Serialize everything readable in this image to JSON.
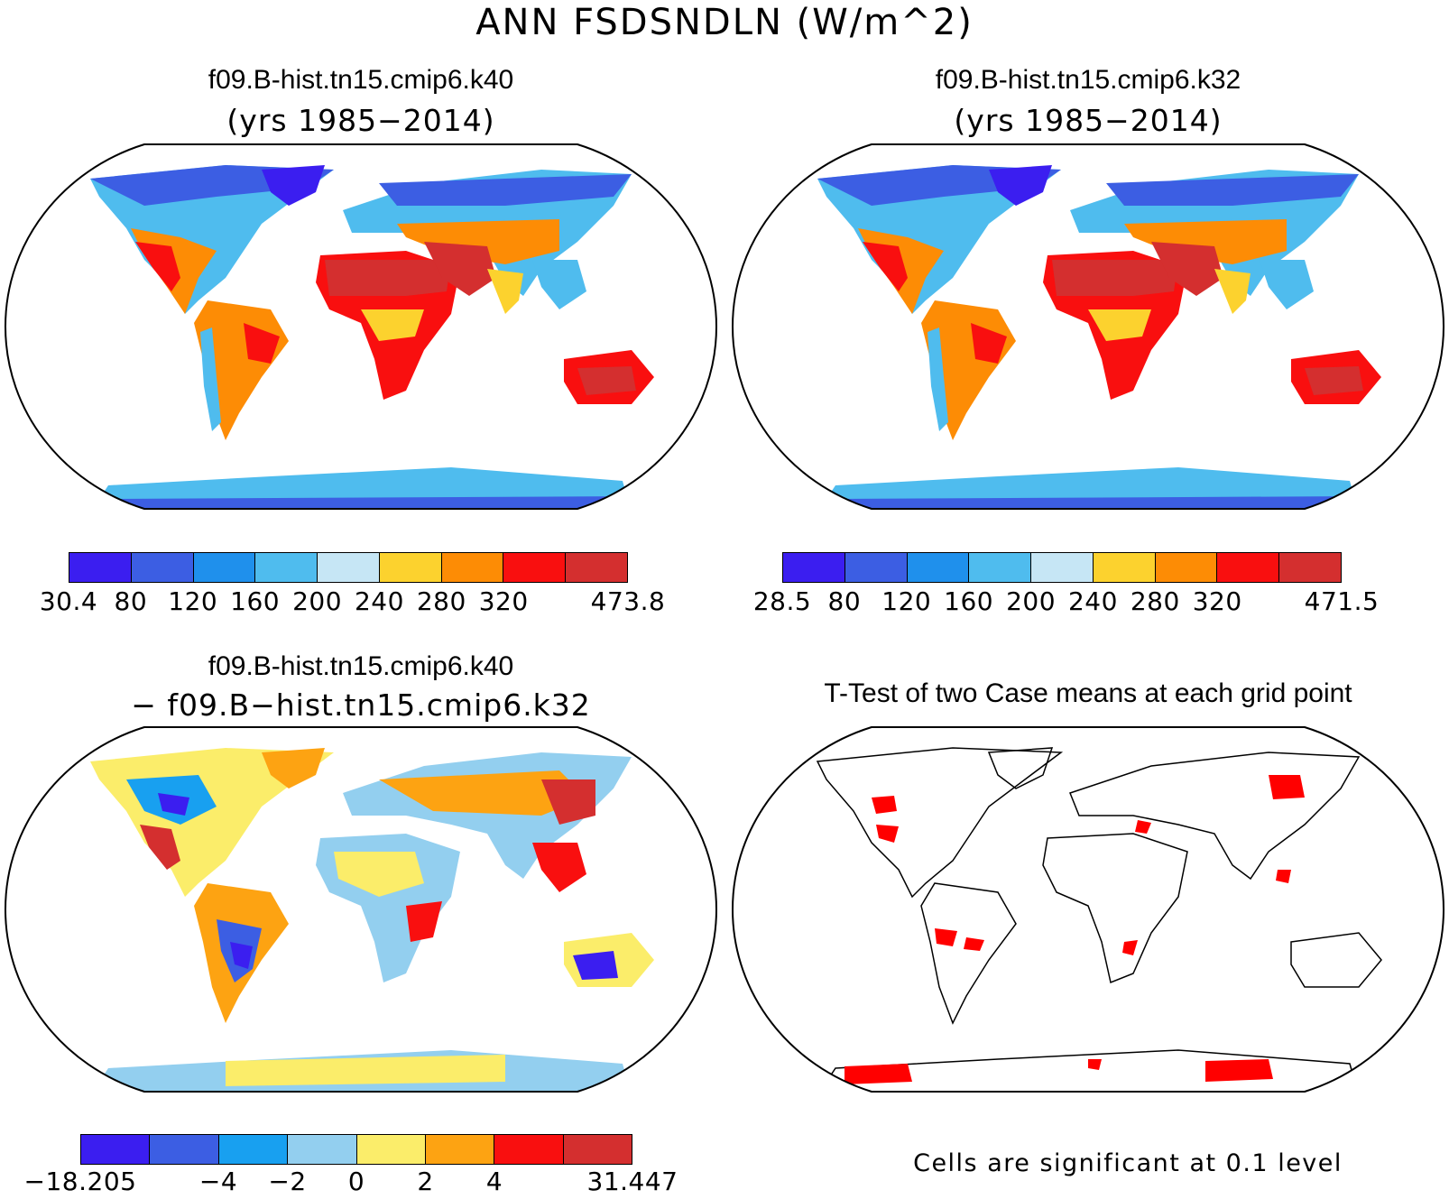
{
  "figure": {
    "title": "ANN FSDSNDLN (W/m^2)"
  },
  "panels": [
    {
      "title": "f09.B-hist.tn15.cmip6.k40",
      "subtitle": "(yrs 1985−2014)",
      "colorbar": {
        "colors": [
          "#3b1ef0",
          "#3c5ee3",
          "#1f90ec",
          "#4fbcee",
          "#c6e6f5",
          "#fcd22e",
          "#fd8c05",
          "#f90f0f",
          "#d42f2f"
        ],
        "labels": [
          "30.4",
          "80",
          "120",
          "160",
          "200",
          "240",
          "280",
          "320",
          "473.8"
        ]
      }
    },
    {
      "title": "f09.B-hist.tn15.cmip6.k32",
      "subtitle": "(yrs 1985−2014)",
      "colorbar": {
        "colors": [
          "#3b1ef0",
          "#3c5ee3",
          "#1f90ec",
          "#4fbcee",
          "#c6e6f5",
          "#fcd22e",
          "#fd8c05",
          "#f90f0f",
          "#d42f2f"
        ],
        "labels": [
          "28.5",
          "80",
          "120",
          "160",
          "200",
          "240",
          "280",
          "320",
          "471.5"
        ]
      }
    },
    {
      "title": "f09.B-hist.tn15.cmip6.k40",
      "subtitle": "− f09.B−hist.tn15.cmip6.k32",
      "colorbar": {
        "colors": [
          "#3b1ef0",
          "#3c5ee3",
          "#18a0f0",
          "#93cfef",
          "#fbed6a",
          "#fda312",
          "#f90f0f",
          "#d42f2f"
        ],
        "labels": [
          "−18.205",
          "−4",
          "−2",
          "0",
          "2",
          "4",
          "31.447"
        ]
      }
    },
    {
      "title": "T-Test of two Case means at each grid point",
      "note": "Cells are significant at 0.1 level",
      "significant_color": "#ff0000"
    }
  ]
}
